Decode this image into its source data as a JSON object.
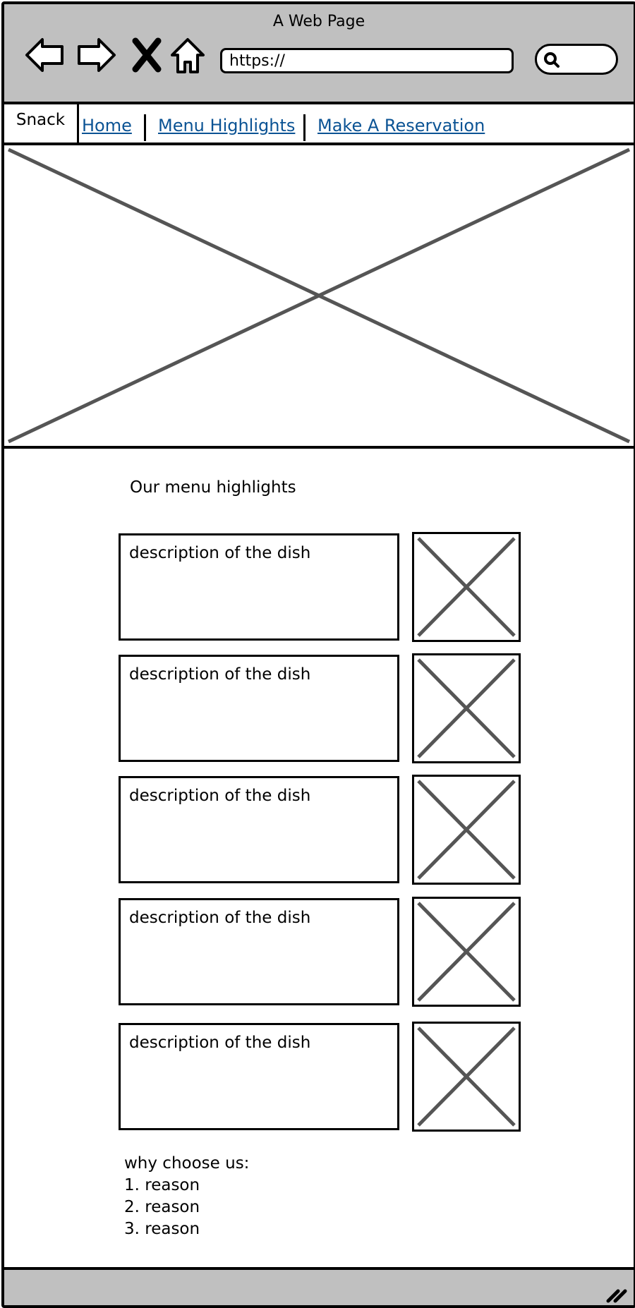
{
  "window": {
    "title": "A Web Page"
  },
  "browser": {
    "url": "https://",
    "icons": [
      "back-arrow-icon",
      "forward-arrow-icon",
      "close-x-icon",
      "home-icon",
      "search-icon"
    ]
  },
  "tabs": {
    "active_label": "Snack",
    "links": [
      "Home",
      "Menu Highlights",
      "Make A Reservation"
    ]
  },
  "main": {
    "section_title": "Our menu highlights",
    "dishes": [
      {
        "description": "description of the dish"
      },
      {
        "description": "description of the dish"
      },
      {
        "description": "description of the dish"
      },
      {
        "description": "description of the dish"
      },
      {
        "description": "description of the dish"
      }
    ],
    "why_title": "why choose us:",
    "reasons": [
      "1. reason",
      "2. reason",
      "3. reason"
    ]
  },
  "colors": {
    "chrome": "#c0c0c0",
    "link": "#0b5394",
    "placeholder_stroke": "#555555"
  }
}
